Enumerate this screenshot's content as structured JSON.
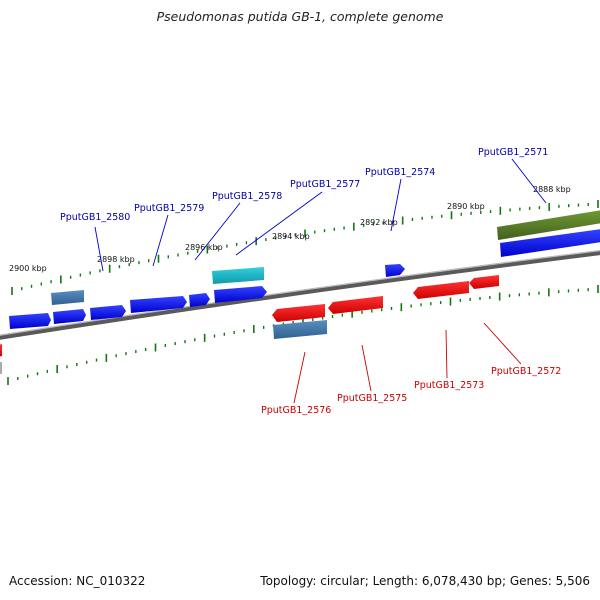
{
  "title": "Pseudomonas putida GB-1, complete genome",
  "footer": {
    "accession_label": "Accession:",
    "accession": "NC_010322",
    "topology_label": "Topology:",
    "topology": "circular;",
    "length_label": "Length:",
    "length": "6,078,430 bp;",
    "genes_label": "Genes:",
    "genes": "5,506"
  },
  "colors": {
    "background": "#ffffff",
    "forward_gene": "#0000ee",
    "reverse_gene": "#ee0000",
    "forward_label": "#0000aa",
    "reverse_label": "#cc0000",
    "rna_feature": "#22bbcc",
    "misc_feature": "#4477aa",
    "region_feature": "#557722",
    "tick": "#117711",
    "backbone": "#777777"
  },
  "ticks": [
    {
      "label": "2900 kbp"
    },
    {
      "label": "2898 kbp"
    },
    {
      "label": "2896 kbp"
    },
    {
      "label": "2894 kbp"
    },
    {
      "label": "2892 kbp"
    },
    {
      "label": "2890 kbp"
    },
    {
      "label": "2888 kbp"
    }
  ],
  "gene_labels": [
    {
      "name": "PputGB1_2580",
      "strand": "forward"
    },
    {
      "name": "PputGB1_2579",
      "strand": "forward"
    },
    {
      "name": "PputGB1_2578",
      "strand": "forward"
    },
    {
      "name": "PputGB1_2577",
      "strand": "forward"
    },
    {
      "name": "PputGB1_2574",
      "strand": "forward"
    },
    {
      "name": "PputGB1_2571",
      "strand": "forward"
    },
    {
      "name": "PputGB1_2576",
      "strand": "reverse"
    },
    {
      "name": "PputGB1_2575",
      "strand": "reverse"
    },
    {
      "name": "PputGB1_2573",
      "strand": "reverse"
    },
    {
      "name": "PputGB1_2572",
      "strand": "reverse"
    }
  ]
}
